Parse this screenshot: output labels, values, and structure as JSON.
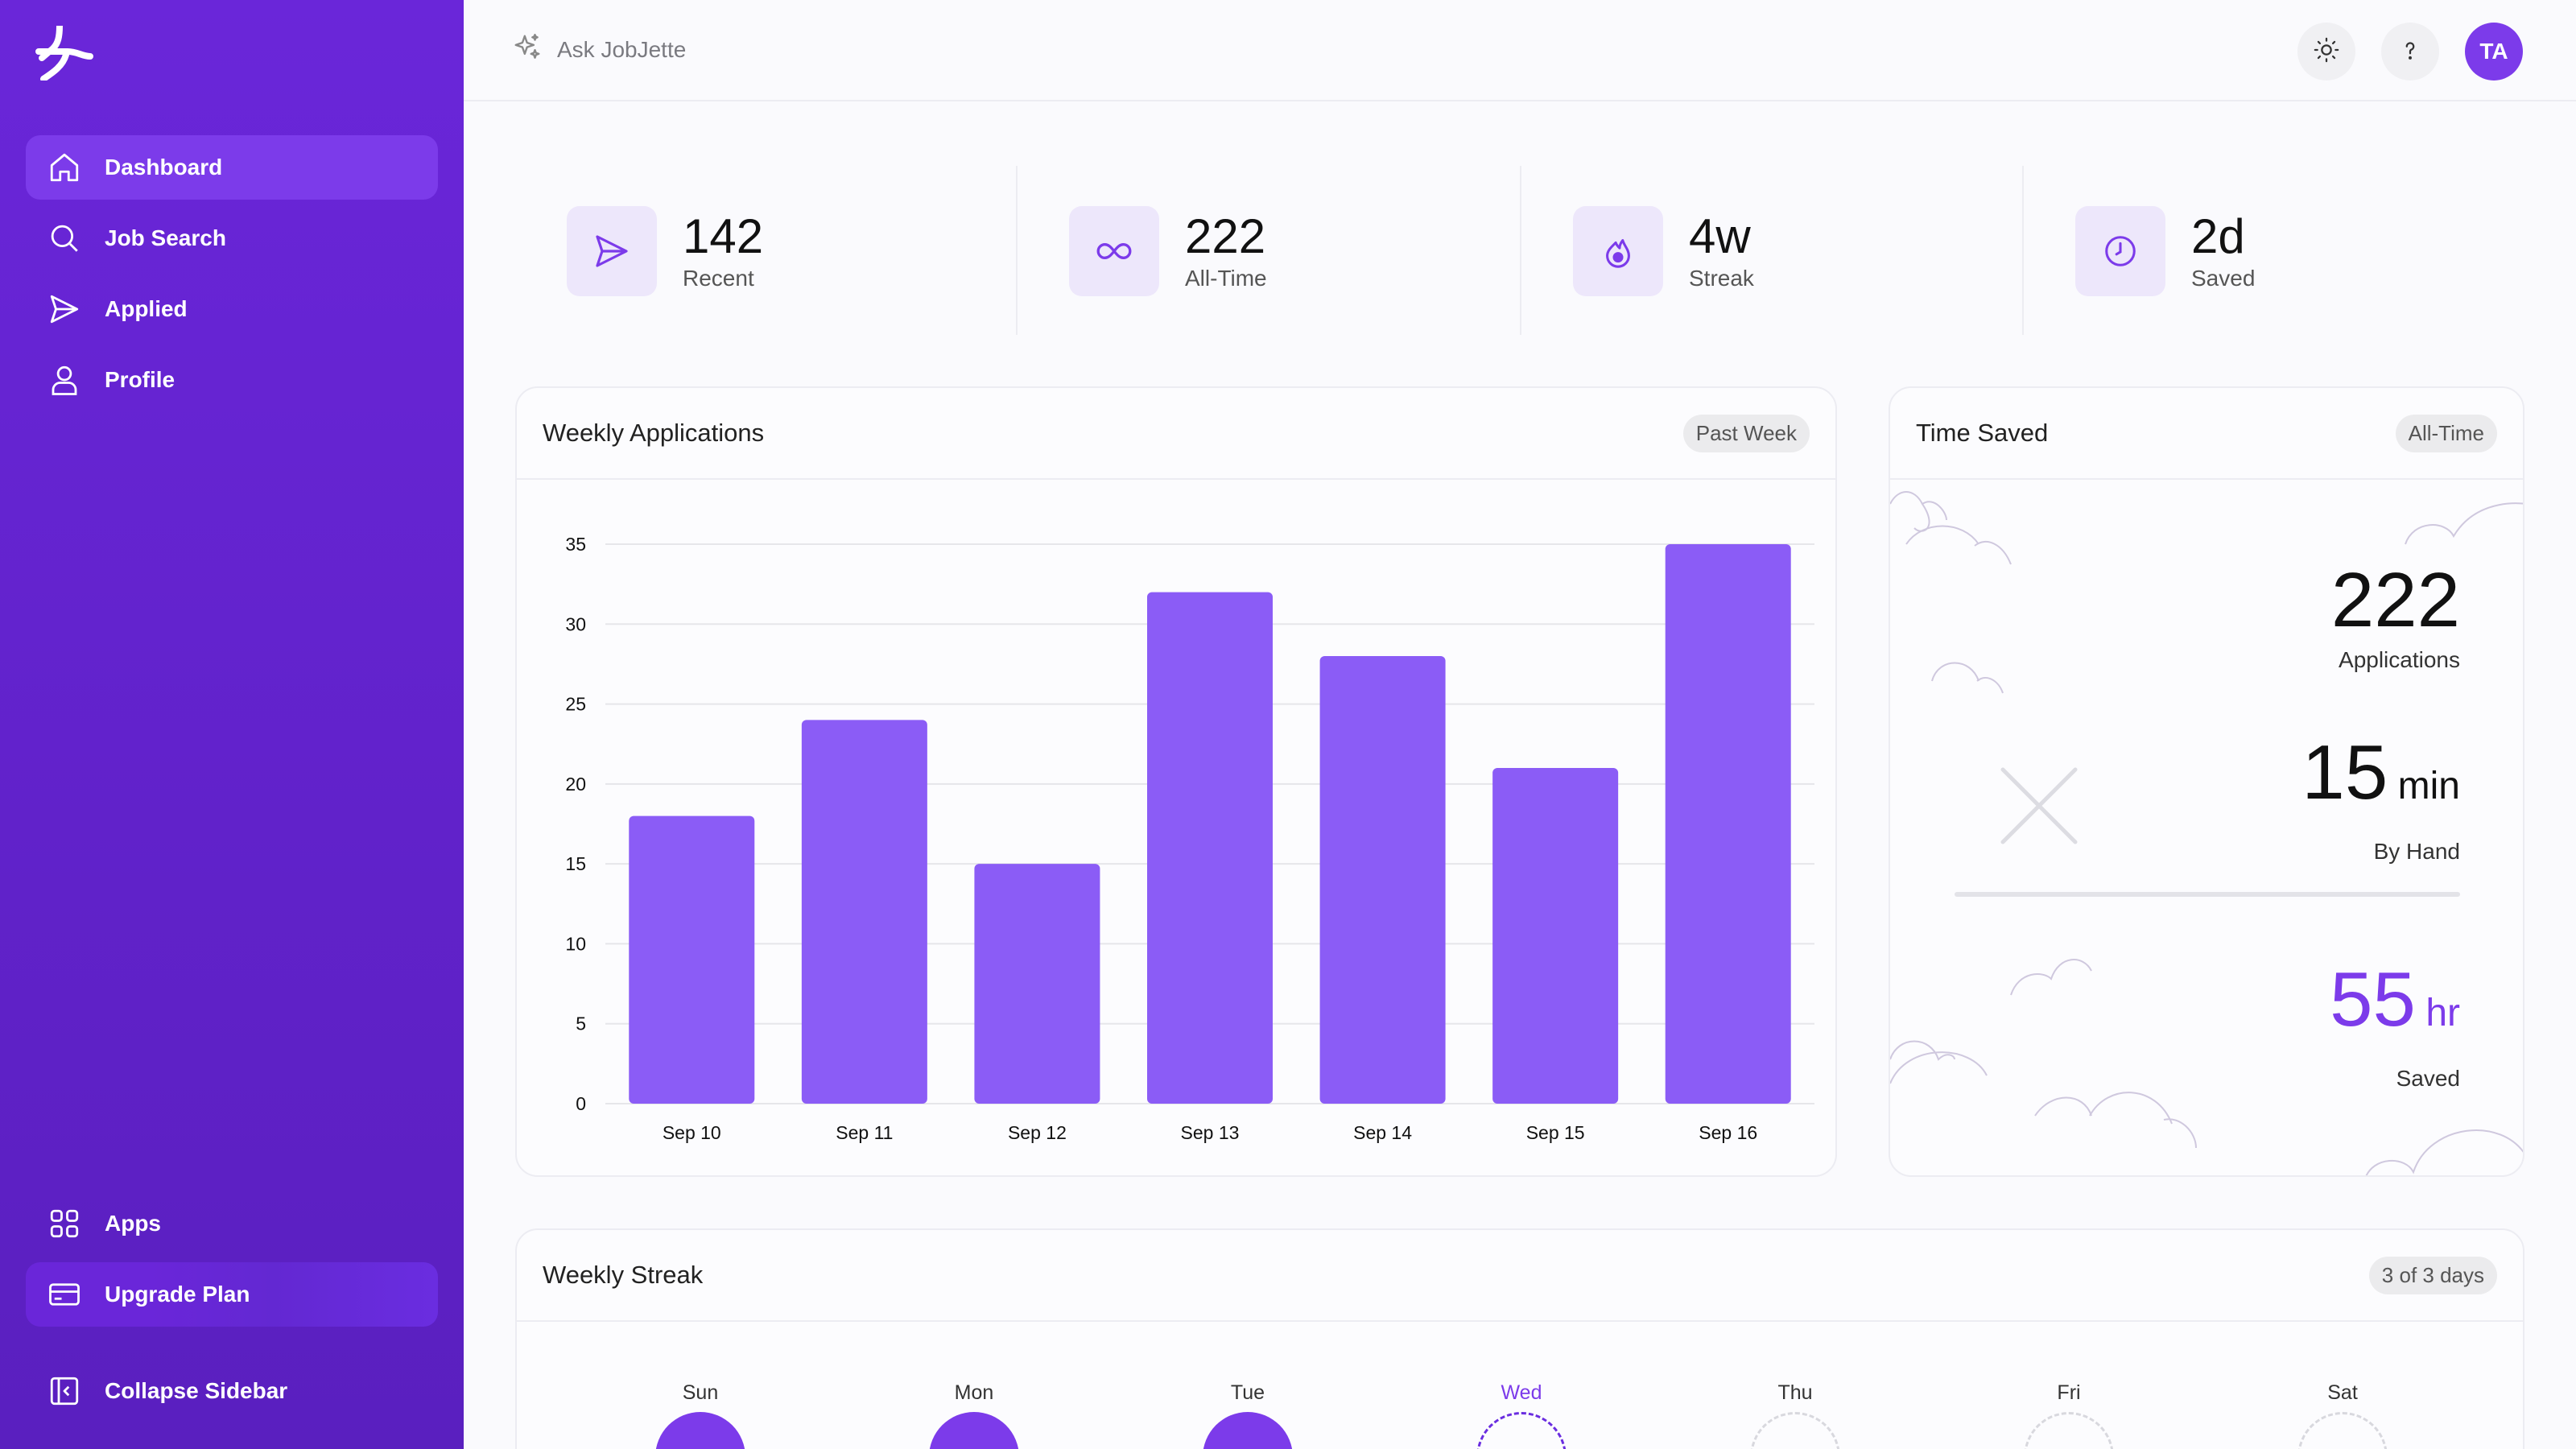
{
  "sidebar": {
    "nav": [
      {
        "label": "Dashboard",
        "icon": "home-icon",
        "active": true
      },
      {
        "label": "Job Search",
        "icon": "search-icon"
      },
      {
        "label": "Applied",
        "icon": "send-icon"
      },
      {
        "label": "Profile",
        "icon": "user-icon"
      }
    ],
    "bottom": [
      {
        "label": "Apps",
        "icon": "grid-icon"
      },
      {
        "label": "Upgrade Plan",
        "icon": "credit-card-icon"
      },
      {
        "label": "Collapse Sidebar",
        "icon": "collapse-icon"
      }
    ]
  },
  "topbar": {
    "ask_label": "Ask JobJette",
    "avatar_initials": "TA"
  },
  "stats": [
    {
      "value": "142",
      "label": "Recent",
      "icon": "send-icon"
    },
    {
      "value": "222",
      "label": "All-Time",
      "icon": "infinity-icon"
    },
    {
      "value": "4w",
      "label": "Streak",
      "icon": "flame-icon"
    },
    {
      "value": "2d",
      "label": "Saved",
      "icon": "clock-icon"
    }
  ],
  "weekly_applications": {
    "title": "Weekly Applications",
    "badge": "Past Week"
  },
  "chart_data": {
    "type": "bar",
    "categories": [
      "Sep 10",
      "Sep 11",
      "Sep 12",
      "Sep 13",
      "Sep 14",
      "Sep 15",
      "Sep 16"
    ],
    "values": [
      18,
      24,
      15,
      32,
      28,
      21,
      35
    ],
    "ylim": [
      0,
      35
    ],
    "yticks": [
      0,
      5,
      10,
      15,
      20,
      25,
      30,
      35
    ],
    "grid": true,
    "bar_color": "#8b5cf6"
  },
  "time_saved": {
    "title": "Time Saved",
    "badge": "All-Time",
    "applications_value": "222",
    "applications_label": "Applications",
    "by_hand_value": "15",
    "by_hand_unit": "min",
    "by_hand_label": "By Hand",
    "saved_value": "55",
    "saved_unit": "hr",
    "saved_label": "Saved"
  },
  "weekly_streak": {
    "title": "Weekly Streak",
    "badge": "3 of 3 days",
    "days": [
      "Sun",
      "Mon",
      "Tue",
      "Wed",
      "Thu",
      "Fri",
      "Sat"
    ]
  },
  "colors": {
    "accent": "#7c3bea",
    "sidebar": "#6a26d9"
  }
}
